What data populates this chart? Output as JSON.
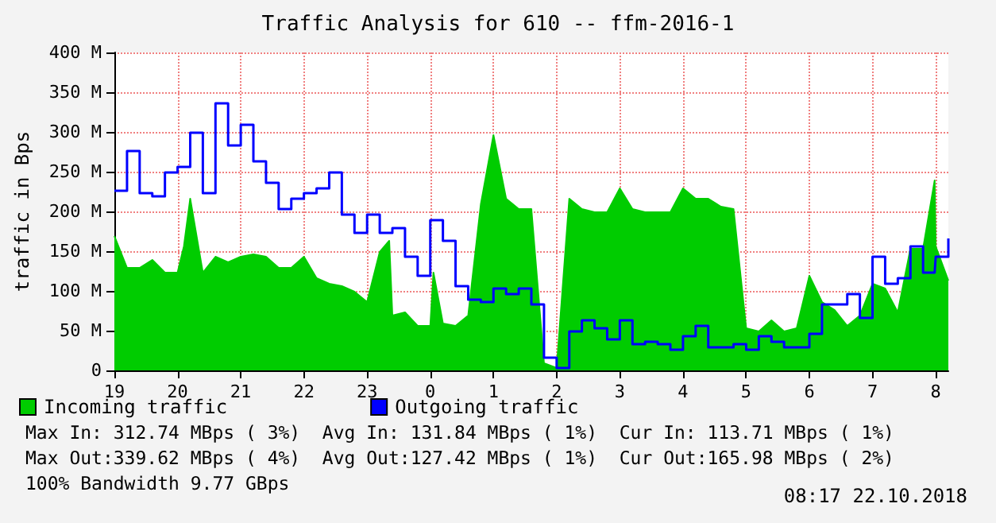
{
  "chart_data": {
    "type": "area",
    "title": "Traffic Analysis for 610 -- ffm-2016-1",
    "ylabel": "traffic in Bps",
    "x": [
      "2018-10-21T19:00",
      "2018-10-21T19:12",
      "2018-10-21T19:24",
      "2018-10-21T19:36",
      "2018-10-21T19:48",
      "2018-10-21T20:00",
      "2018-10-21T20:06",
      "2018-10-21T20:12",
      "2018-10-21T20:24",
      "2018-10-21T20:36",
      "2018-10-21T20:48",
      "2018-10-21T21:00",
      "2018-10-21T21:12",
      "2018-10-21T21:24",
      "2018-10-21T21:36",
      "2018-10-21T21:48",
      "2018-10-21T22:00",
      "2018-10-21T22:12",
      "2018-10-21T22:24",
      "2018-10-21T22:36",
      "2018-10-21T22:48",
      "2018-10-21T23:00",
      "2018-10-21T23:12",
      "2018-10-21T23:21",
      "2018-10-21T23:24",
      "2018-10-21T23:36",
      "2018-10-21T23:48",
      "2018-10-22T00:00",
      "2018-10-22T00:03",
      "2018-10-22T00:12",
      "2018-10-22T00:24",
      "2018-10-22T00:36",
      "2018-10-22T00:48",
      "2018-10-22T01:00",
      "2018-10-22T01:12",
      "2018-10-22T01:24",
      "2018-10-22T01:36",
      "2018-10-22T01:48",
      "2018-10-22T02:00",
      "2018-10-22T02:12",
      "2018-10-22T02:24",
      "2018-10-22T02:36",
      "2018-10-22T02:48",
      "2018-10-22T03:00",
      "2018-10-22T03:12",
      "2018-10-22T03:24",
      "2018-10-22T03:36",
      "2018-10-22T03:48",
      "2018-10-22T04:00",
      "2018-10-22T04:12",
      "2018-10-22T04:24",
      "2018-10-22T04:36",
      "2018-10-22T04:48",
      "2018-10-22T05:00",
      "2018-10-22T05:12",
      "2018-10-22T05:24",
      "2018-10-22T05:36",
      "2018-10-22T05:48",
      "2018-10-22T06:00",
      "2018-10-22T06:12",
      "2018-10-22T06:24",
      "2018-10-22T06:36",
      "2018-10-22T06:48",
      "2018-10-22T07:00",
      "2018-10-22T07:12",
      "2018-10-22T07:24",
      "2018-10-22T07:36",
      "2018-10-22T07:48",
      "2018-10-22T07:59",
      "2018-10-22T08:00",
      "2018-10-22T08:12"
    ],
    "series": [
      {
        "name": "Incoming traffic",
        "color": "#00cc00",
        "values": [
          169,
          129,
          129,
          139,
          123,
          123,
          156,
          216,
          123,
          143,
          136,
          143,
          146,
          143,
          129,
          129,
          143,
          116,
          109,
          106,
          99,
          86,
          149,
          163,
          69,
          73,
          56,
          56,
          123,
          59,
          56,
          69,
          209,
          296,
          216,
          203,
          203,
          9,
          3,
          216,
          203,
          199,
          199,
          229,
          203,
          199,
          199,
          199,
          229,
          216,
          216,
          206,
          203,
          53,
          49,
          63,
          49,
          53,
          119,
          86,
          76,
          56,
          69,
          109,
          103,
          73,
          153,
          153,
          239,
          156,
          113
        ]
      },
      {
        "name": "Outgoing traffic",
        "type": "step",
        "color": "#0000ff",
        "values": [
          226,
          276,
          223,
          219,
          249,
          256,
          256,
          299,
          223,
          336,
          283,
          309,
          263,
          236,
          203,
          216,
          223,
          229,
          249,
          196,
          173,
          196,
          173,
          173,
          179,
          143,
          119,
          189,
          189,
          163,
          106,
          89,
          86,
          103,
          96,
          103,
          83,
          16,
          3,
          49,
          63,
          53,
          39,
          63,
          33,
          36,
          33,
          26,
          43,
          56,
          29,
          29,
          33,
          26,
          43,
          36,
          29,
          29,
          46,
          83,
          83,
          96,
          66,
          143,
          109,
          116,
          156,
          123,
          123,
          143,
          166
        ]
      }
    ],
    "xlim": [
      "2018-10-21T19:00",
      "2018-10-22T08:12"
    ],
    "xticks": [
      {
        "value": "2018-10-21T19:00",
        "label": "19"
      },
      {
        "value": "2018-10-21T20:00",
        "label": "20"
      },
      {
        "value": "2018-10-21T21:00",
        "label": "21"
      },
      {
        "value": "2018-10-21T22:00",
        "label": "22"
      },
      {
        "value": "2018-10-21T23:00",
        "label": "23"
      },
      {
        "value": "2018-10-22T00:00",
        "label": "0"
      },
      {
        "value": "2018-10-22T01:00",
        "label": "1"
      },
      {
        "value": "2018-10-22T02:00",
        "label": "2"
      },
      {
        "value": "2018-10-22T03:00",
        "label": "3"
      },
      {
        "value": "2018-10-22T04:00",
        "label": "4"
      },
      {
        "value": "2018-10-22T05:00",
        "label": "5"
      },
      {
        "value": "2018-10-22T06:00",
        "label": "6"
      },
      {
        "value": "2018-10-22T07:00",
        "label": "7"
      },
      {
        "value": "2018-10-22T08:00",
        "label": "8"
      }
    ],
    "ylim": [
      0,
      400
    ],
    "yticks": [
      0,
      {
        "value": 50,
        "label": "50 M"
      },
      {
        "value": 100,
        "label": "100 M"
      },
      {
        "value": 150,
        "label": "150 M"
      },
      {
        "value": 200,
        "label": "200 M"
      },
      {
        "value": 250,
        "label": "250 M"
      },
      {
        "value": 300,
        "label": "300 M"
      },
      {
        "value": 350,
        "label": "350 M"
      },
      {
        "value": 400,
        "label": "400 M"
      }
    ],
    "grid": true,
    "legend": "bottom",
    "annotations": [
      "Max In: 312.74 MBps ( 3%)  Avg In: 131.84 MBps ( 1%)  Cur In: 113.71 MBps ( 1%)",
      "Max Out:339.62 MBps ( 4%)  Avg Out:127.42 MBps ( 1%)  Cur Out:165.98 MBps ( 2%)",
      "100% Bandwidth 9.77 GBps",
      "08:17 22.10.2018"
    ]
  }
}
